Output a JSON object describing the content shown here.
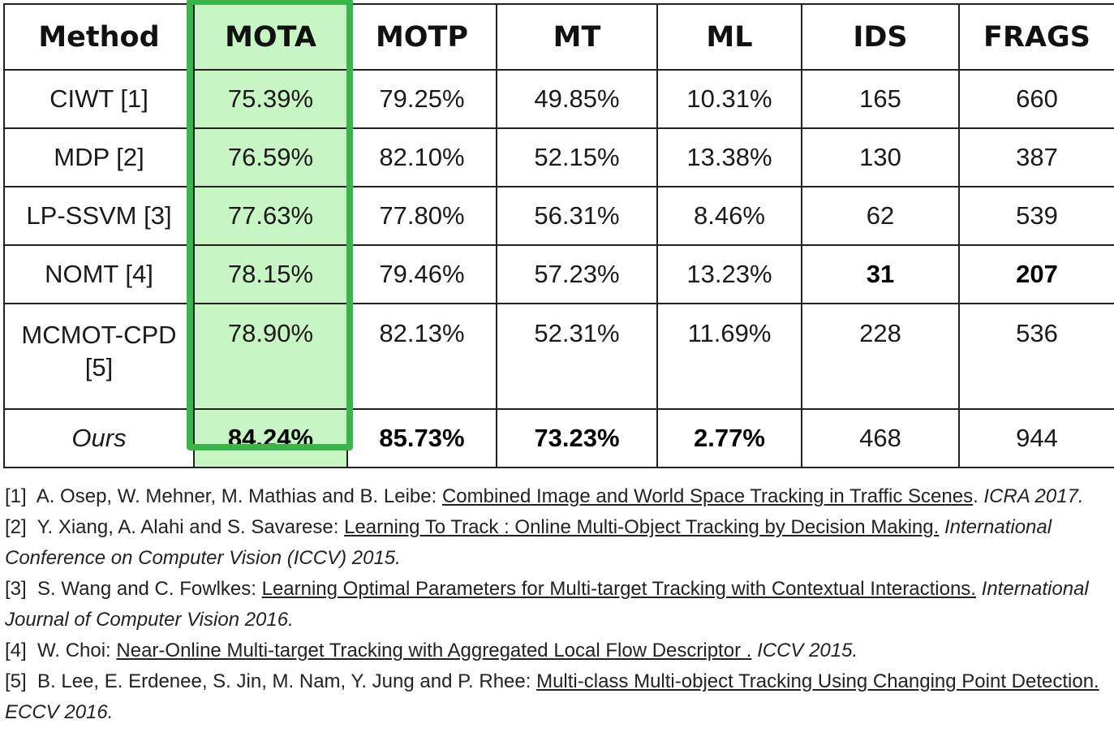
{
  "chart_data": {
    "type": "table",
    "columns": [
      "Method",
      "MOTA",
      "MOTP",
      "MT",
      "ML",
      "IDS",
      "FRAGS"
    ],
    "highlighted_column": "MOTA",
    "highlight_color": "#3ab54a",
    "highlight_fill": "#c8f5c4",
    "rows": [
      {
        "method": "CIWT [1]",
        "values": [
          "75.39%",
          "79.25%",
          "49.85%",
          "10.31%",
          "165",
          "660"
        ],
        "bold": []
      },
      {
        "method": "MDP [2]",
        "values": [
          "76.59%",
          "82.10%",
          "52.15%",
          "13.38%",
          "130",
          "387"
        ],
        "bold": []
      },
      {
        "method": "LP-SSVM [3]",
        "values": [
          "77.63%",
          "77.80%",
          "56.31%",
          "8.46%",
          "62",
          "539"
        ],
        "bold": []
      },
      {
        "method": "NOMT [4]",
        "values": [
          "78.15%",
          "79.46%",
          "57.23%",
          "13.23%",
          "31",
          "207"
        ],
        "bold": [
          4,
          5
        ]
      },
      {
        "method_lines": [
          "MCMOT-CPD",
          "[5]"
        ],
        "values": [
          "78.90%",
          "82.13%",
          "52.31%",
          "11.69%",
          "228",
          "536"
        ],
        "bold": []
      },
      {
        "method": "Ours",
        "method_italic": true,
        "values": [
          "84.24%",
          "85.73%",
          "73.23%",
          "2.77%",
          "468",
          "944"
        ],
        "bold": [
          0,
          1,
          2,
          3
        ]
      }
    ]
  },
  "references": [
    {
      "num": "[1]",
      "authors": "A. Osep, W. Mehner, M. Mathias and B. Leibe: ",
      "title": "Combined Image and World Space Tracking in Traffic Scenes",
      "sep": ".",
      "venue": "ICRA 2017."
    },
    {
      "num": "[2]",
      "authors": "Y. Xiang, A. Alahi and S. Savarese: ",
      "title": "Learning To Track : Online Multi-Object Tracking by Decision Making.",
      "sep": "",
      "venue": "International Conference on Computer Vision (ICCV) 2015."
    },
    {
      "num": "[3]",
      "authors": "S. Wang and C. Fowlkes: ",
      "title": "Learning Optimal Parameters for Multi-target Tracking with Contextual Interactions.",
      "sep": "",
      "venue": "International Journal of Computer Vision 2016."
    },
    {
      "num": "[4]",
      "authors": "W. Choi: ",
      "title": "Near-Online Multi-target Tracking with Aggregated Local Flow Descriptor .",
      "sep": " ",
      "venue": "ICCV 2015."
    },
    {
      "num": "[5]",
      "authors": "B. Lee, E. Erdenee, S. Jin, M. Nam, Y. Jung and P. Rhee: ",
      "title": "Multi-class Multi-object Tracking Using Changing Point Detection.",
      "sep": " ",
      "venue": "ECCV 2016."
    }
  ]
}
